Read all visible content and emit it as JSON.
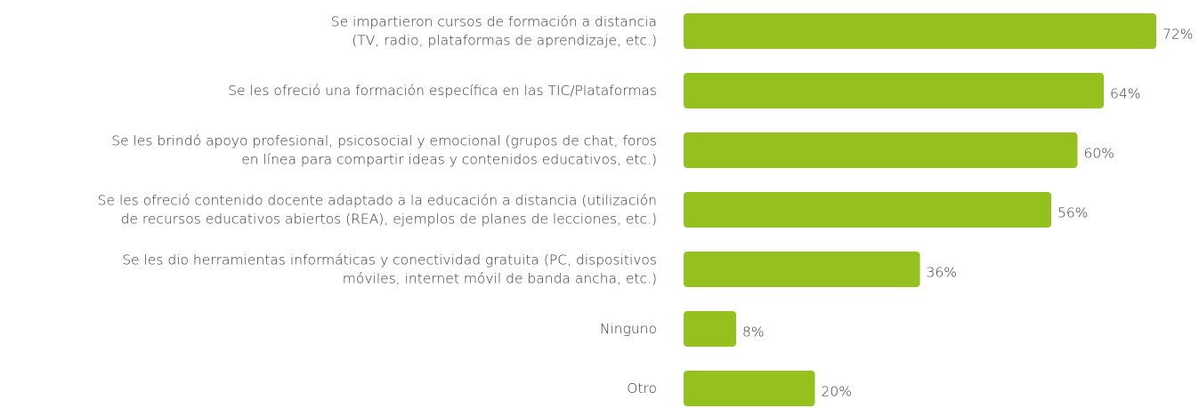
{
  "chart_data": {
    "type": "bar",
    "orientation": "horizontal",
    "categories": [
      "Se impartieron cursos de formación a distancia\n(TV, radio, plataformas de aprendizaje, etc.)",
      "Se les ofreció una formación específica en las TIC/Plataformas",
      "Se les brindó apoyo profesional, psicosocial y emocional (grupos de chat, foros\nen línea para compartir ideas y contenidos educativos, etc.)",
      "Se les ofreció contenido docente adaptado a la educación a distancia (utilización\nde recursos educativos abiertos (REA), ejemplos de planes de lecciones, etc.)",
      "Se les dio herramientas informáticas y conectividad gratuita (PC, dispositivos\nmóviles, internet móvil de banda ancha, etc.)",
      "Ninguno",
      "Otro"
    ],
    "values": [
      72,
      64,
      60,
      56,
      36,
      8,
      20
    ],
    "value_labels": [
      "72%",
      "64%",
      "60%",
      "56%",
      "36%",
      "8%",
      "20%"
    ],
    "color": "#95c11f"
  }
}
